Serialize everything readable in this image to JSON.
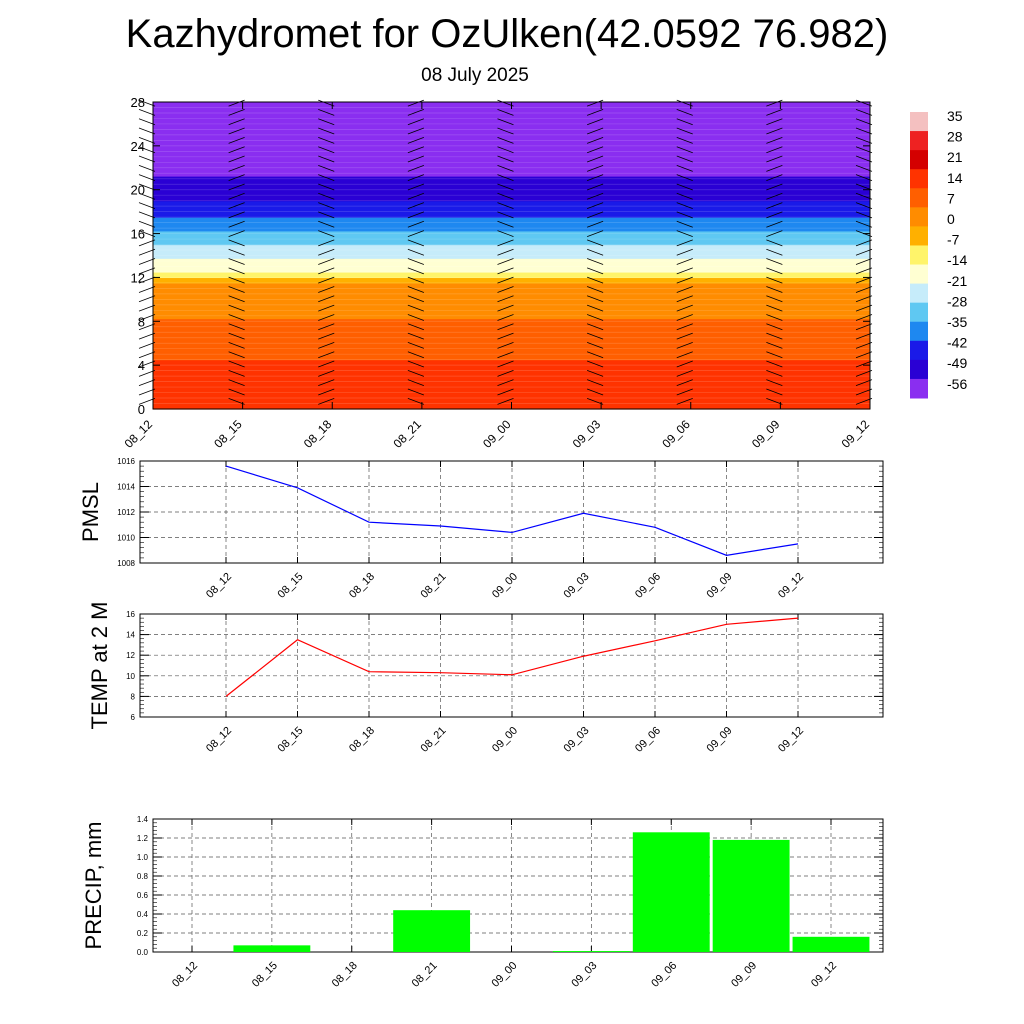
{
  "page": {
    "title": "Kazhydromet for OzUlken(42.0592 76.982)",
    "subtitle": "08 July 2025"
  },
  "chart_data": [
    {
      "type": "heatmap",
      "name": "vertical-profile",
      "x_categories": [
        "08_12",
        "08_15",
        "08_18",
        "08_21",
        "09_00",
        "09_03",
        "09_06",
        "09_09",
        "09_12"
      ],
      "yticks": [
        0,
        4,
        8,
        12,
        16,
        20,
        24,
        28
      ],
      "ylim": [
        0,
        28
      ],
      "colorbar": {
        "labels": [
          "35",
          "28",
          "21",
          "14",
          "7",
          "0",
          "-7",
          "-14",
          "-21",
          "-28",
          "-35",
          "-42",
          "-49",
          "-56"
        ],
        "colors": [
          "#f4c0c0",
          "#ee2222",
          "#d40000",
          "#ff3300",
          "#ff5f00",
          "#ff8c00",
          "#ffb000",
          "#fff46a",
          "#ffffd2",
          "#c6ecfa",
          "#5fc8f2",
          "#1e88f0",
          "#1a1ae8",
          "#2a00d4",
          "#8a2ef0"
        ]
      },
      "profile": [
        {
          "level": 0,
          "value": 18
        },
        {
          "level": 3,
          "value": 14
        },
        {
          "level": 7,
          "value": 7
        },
        {
          "level": 11.8,
          "value": -3
        },
        {
          "level": 12.3,
          "value": -15
        },
        {
          "level": 15,
          "value": -30
        },
        {
          "level": 19,
          "value": -50
        },
        {
          "level": 21,
          "value": -56
        },
        {
          "level": 22,
          "value": -60
        },
        {
          "level": 28,
          "value": -62
        }
      ]
    },
    {
      "type": "line",
      "name": "pmsl",
      "ylabel": "PMSL",
      "categories": [
        "08_12",
        "08_15",
        "08_18",
        "08_21",
        "09_00",
        "09_03",
        "09_06",
        "09_09",
        "09_12"
      ],
      "series": [
        {
          "values": [
            1015.6,
            1013.9,
            1011.2,
            1010.9,
            1010.4,
            1011.9,
            1010.8,
            1008.6,
            1009.5
          ],
          "color": "#0000ff"
        }
      ],
      "ylim": [
        1008,
        1016
      ],
      "yticks": [
        1008,
        1010,
        1012,
        1014,
        1016
      ],
      "grid": true
    },
    {
      "type": "line",
      "name": "temp",
      "ylabel": "TEMP at 2 M",
      "categories": [
        "08_12",
        "08_15",
        "08_18",
        "08_21",
        "09_00",
        "09_03",
        "09_06",
        "09_09",
        "09_12"
      ],
      "series": [
        {
          "values": [
            8.0,
            13.5,
            10.4,
            10.3,
            10.1,
            11.9,
            13.4,
            15.0,
            15.6
          ],
          "color": "#ff0000"
        }
      ],
      "ylim": [
        6,
        16
      ],
      "yticks": [
        6,
        8,
        10,
        12,
        14,
        16
      ],
      "grid": true
    },
    {
      "type": "bar",
      "name": "precip",
      "ylabel": "PRECIP, mm",
      "categories": [
        "08_12",
        "08_15",
        "08_18",
        "08_21",
        "09_00",
        "09_03",
        "09_06",
        "09_09",
        "09_12"
      ],
      "values": [
        0,
        0.07,
        0,
        0.44,
        0,
        0.01,
        1.26,
        1.18,
        0.16
      ],
      "color": "#00ff00",
      "ylim": [
        0,
        1.4
      ],
      "yticks": [
        "0.0",
        "0.2",
        "0.4",
        "0.6",
        "0.8",
        "1.0",
        "1.2",
        "1.4"
      ],
      "grid": true
    }
  ]
}
